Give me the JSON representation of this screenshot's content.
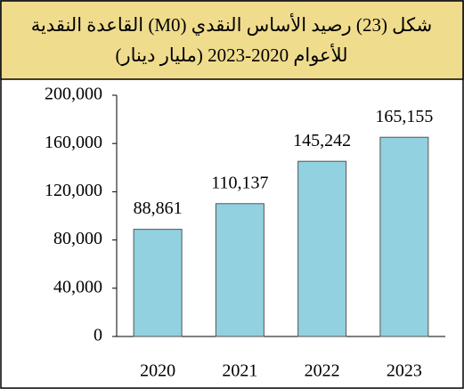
{
  "chart_data": {
    "type": "bar",
    "title": [
      "شكل (23) رصيد الأساس النقدي (M0) القاعدة النقدية",
      "للأعوام 2020-2023 (مليار دينار)"
    ],
    "categories": [
      "2020",
      "2021",
      "2022",
      "2023"
    ],
    "values": [
      88861,
      110137,
      145242,
      165155
    ],
    "value_labels": [
      "88,861",
      "110,137",
      "145,242",
      "165,155"
    ],
    "color": "#92d1df",
    "ylim": [
      0,
      200000
    ],
    "yticks": [
      0,
      {
        "value": 40000,
        "label": "40,000"
      },
      {
        "value": 80000,
        "label": "80,000"
      },
      {
        "value": 120000,
        "label": "120,000"
      },
      {
        "value": 160000,
        "label": "160,000"
      },
      {
        "value": 200000,
        "label": "200,000"
      }
    ],
    "grid": false
  }
}
